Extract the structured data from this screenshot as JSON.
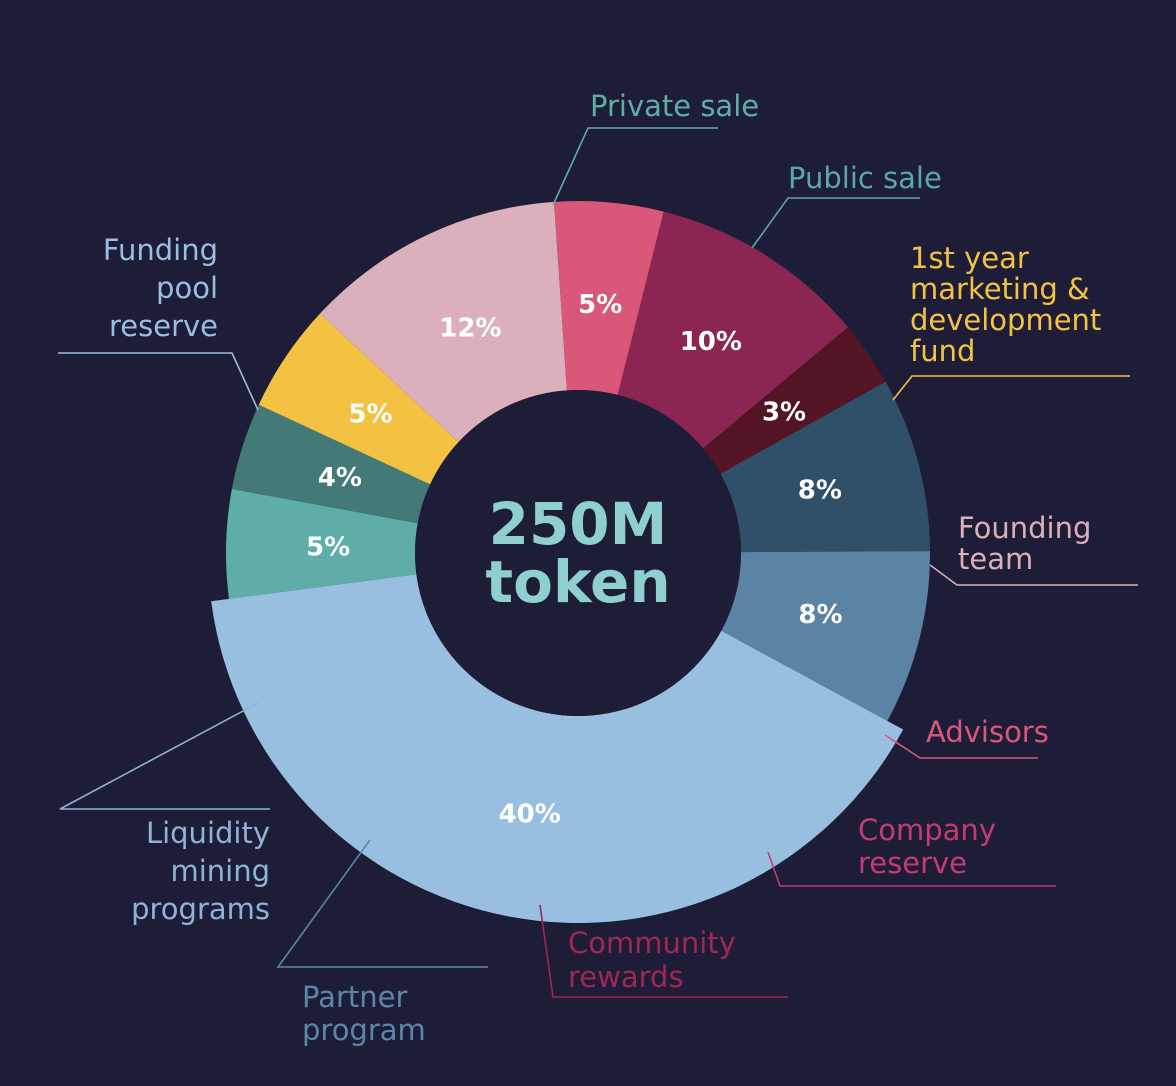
{
  "chart_data": {
    "type": "pie",
    "center_label": [
      "250M",
      "token"
    ],
    "slices": [
      {
        "label": [
          "Private sale"
        ],
        "value": 5,
        "value_label": "5%",
        "color": "#5eada8",
        "text_color": "#5eada8"
      },
      {
        "label": [
          "Public sale"
        ],
        "value": 4,
        "value_label": "4%",
        "color": "#437a78",
        "text_color": "#59a8a4"
      },
      {
        "label": [
          "1st year",
          "marketing &",
          "development",
          "fund"
        ],
        "value": 5,
        "value_label": "5%",
        "color": "#f3c242",
        "text_color": "#f3c242"
      },
      {
        "label": [
          "Founding",
          "team"
        ],
        "value": 12,
        "value_label": "12%",
        "color": "#dbafbb",
        "text_color": "#dbafbb"
      },
      {
        "label": [
          "Advisors"
        ],
        "value": 5,
        "value_label": "5%",
        "color": "#d95778",
        "text_color": "#d95778"
      },
      {
        "label": [
          "Company",
          "reserve"
        ],
        "value": 10,
        "value_label": "10%",
        "color": "#8b2551",
        "text_color": "#c43a74"
      },
      {
        "label": [
          "Community",
          "rewards"
        ],
        "value": 3,
        "value_label": "3%",
        "color": "#531524",
        "text_color": "#9e2753"
      },
      {
        "label": [
          "Partner",
          "program"
        ],
        "value": 8,
        "value_label": "8%",
        "color": "#2f5068",
        "text_color": "#5b86a8"
      },
      {
        "label": [
          "Liquidity",
          "mining",
          "programs"
        ],
        "value": 8,
        "value_label": "8%",
        "color": "#5b83a3",
        "text_color": "#8fb3d3"
      },
      {
        "label": [
          "Funding",
          "pool",
          "reserve"
        ],
        "value": 40,
        "value_label": "40%",
        "color": "#98bfe0",
        "text_color": "#98bfe0"
      }
    ]
  }
}
